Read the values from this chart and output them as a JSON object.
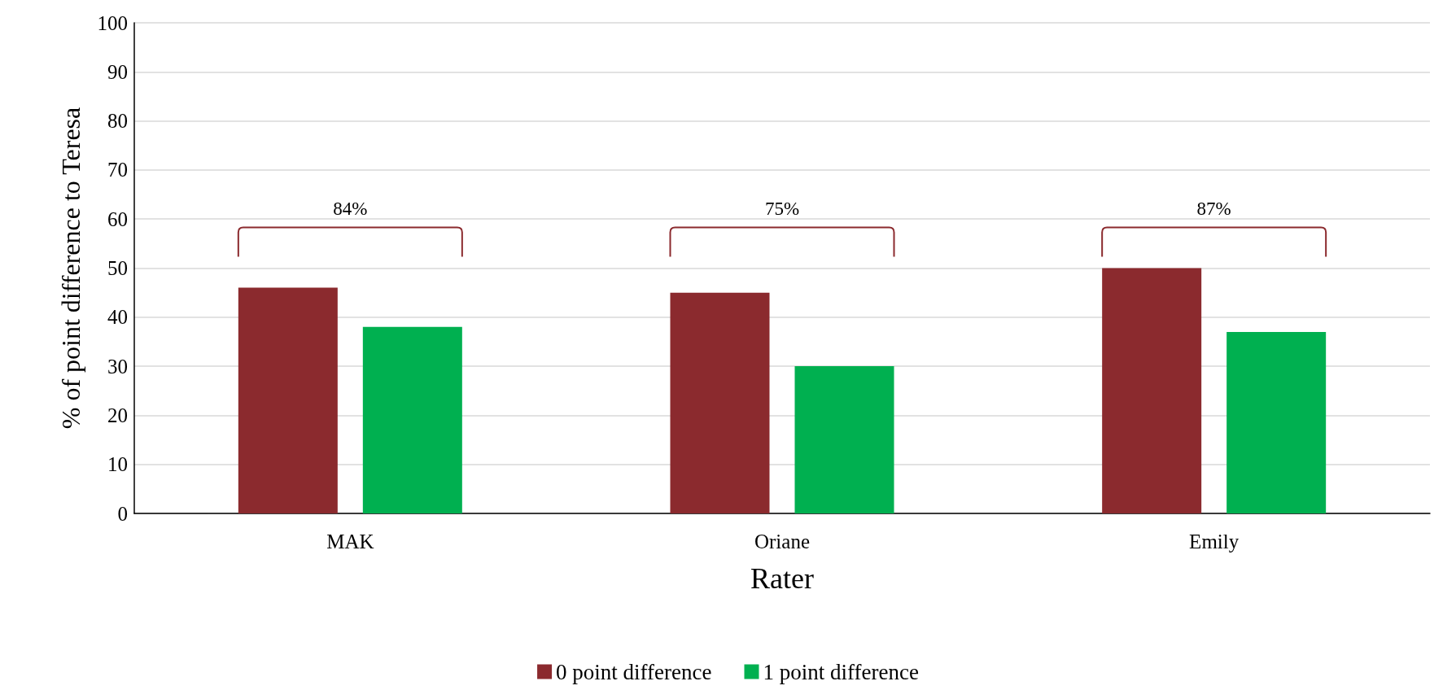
{
  "chart_data": {
    "type": "bar",
    "xlabel": "Rater",
    "ylabel": "% of point difference to Teresa",
    "categories": [
      "MAK",
      "Oriane",
      "Emily"
    ],
    "series": [
      {
        "name": "0 point difference",
        "color": "#8b2a2e",
        "values": [
          46,
          45,
          50
        ]
      },
      {
        "name": "1 point difference",
        "color": "#00b050",
        "values": [
          38,
          30,
          37
        ]
      }
    ],
    "ylim": [
      0,
      100
    ],
    "yticks": [
      0,
      10,
      20,
      30,
      40,
      50,
      60,
      70,
      80,
      90,
      100
    ],
    "grid": "y",
    "legend": "bottom",
    "annotations": [
      "84%",
      "75%",
      "87%"
    ]
  }
}
